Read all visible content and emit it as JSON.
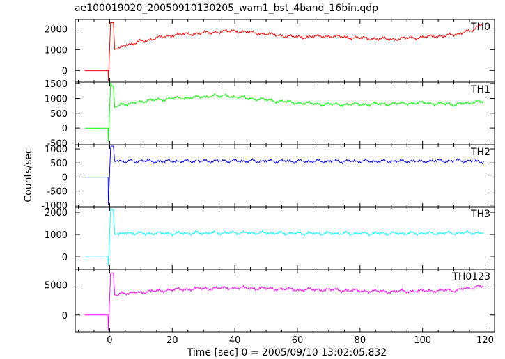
{
  "chart_data": {
    "type": "line",
    "title": "ae100019020_20050910130205_wam1_bst_4band_16bin.qdp",
    "xlabel": "Time [sec]  0 = 2005/09/10 13:02:05.832",
    "ylabel": "Counts/sec",
    "xlim": [
      -11,
      123
    ],
    "x_ticks": [
      0,
      20,
      40,
      60,
      80,
      100,
      120
    ],
    "panels": [
      {
        "name": "TH0",
        "color": "#ff0000",
        "ylim": [
          -560,
          2450
        ],
        "y_ticks": [
          0,
          1000,
          2000
        ],
        "x": [
          -8,
          -0.5,
          -0.4,
          0.3,
          0.6,
          1.2,
          1.6,
          2.5,
          5,
          10,
          20,
          30,
          40,
          50,
          60,
          70,
          80,
          90,
          100,
          110,
          115,
          119.5
        ],
        "y": [
          -10,
          -10,
          -500,
          2300,
          2300,
          2300,
          1000,
          1100,
          1200,
          1400,
          1700,
          1800,
          1900,
          1750,
          1600,
          1650,
          1550,
          1500,
          1600,
          1700,
          1900,
          2250
        ]
      },
      {
        "name": "TH1",
        "color": "#00ff00",
        "ylim": [
          -560,
          1550
        ],
        "y_ticks": [
          -500,
          0,
          500,
          1000,
          1500
        ],
        "x": [
          -8,
          -0.5,
          -0.4,
          0.3,
          0.6,
          1.2,
          1.6,
          2.5,
          5,
          10,
          20,
          30,
          35,
          40,
          50,
          60,
          70,
          80,
          90,
          100,
          110,
          119.5
        ],
        "y": [
          -5,
          -5,
          -450,
          1500,
          1450,
          1400,
          700,
          750,
          800,
          900,
          1000,
          1050,
          1100,
          1050,
          950,
          850,
          800,
          800,
          820,
          850,
          800,
          900
        ]
      },
      {
        "name": "TH2",
        "color": "#0000ff",
        "ylim": [
          -1080,
          1150
        ],
        "y_ticks": [
          -1000,
          -500,
          0,
          500,
          1000
        ],
        "x": [
          -8,
          -0.5,
          -0.4,
          0.3,
          0.6,
          1.2,
          1.6,
          2.5,
          10,
          20,
          40,
          60,
          80,
          100,
          110,
          119.5
        ],
        "y": [
          -5,
          -5,
          -1000,
          1050,
          1100,
          1100,
          550,
          560,
          560,
          560,
          570,
          560,
          560,
          560,
          580,
          550
        ]
      },
      {
        "name": "TH3",
        "color": "#00ffff",
        "ylim": [
          -560,
          2250
        ],
        "y_ticks": [
          0,
          1000,
          2000
        ],
        "x": [
          -8,
          -0.5,
          -0.4,
          0.3,
          0.6,
          1.2,
          1.6,
          2.5,
          10,
          20,
          40,
          60,
          80,
          100,
          119.5
        ],
        "y": [
          -5,
          -5,
          -400,
          2150,
          2150,
          2100,
          1000,
          1050,
          1050,
          1050,
          1080,
          1050,
          1050,
          1050,
          1080
        ]
      },
      {
        "name": "TH0123",
        "color": "#ff00ff",
        "ylim": [
          -2800,
          7600
        ],
        "y_ticks": [
          0,
          5000
        ],
        "x": [
          -8,
          -0.5,
          -0.4,
          0.3,
          0.6,
          1.2,
          1.6,
          2.5,
          5,
          10,
          20,
          30,
          40,
          50,
          60,
          70,
          80,
          90,
          100,
          110,
          119.5
        ],
        "y": [
          -5,
          -5,
          -2600,
          7000,
          7000,
          7000,
          3300,
          3400,
          3600,
          3800,
          4200,
          4400,
          4500,
          4400,
          4200,
          4200,
          4000,
          3900,
          4000,
          4100,
          4800
        ]
      }
    ]
  }
}
